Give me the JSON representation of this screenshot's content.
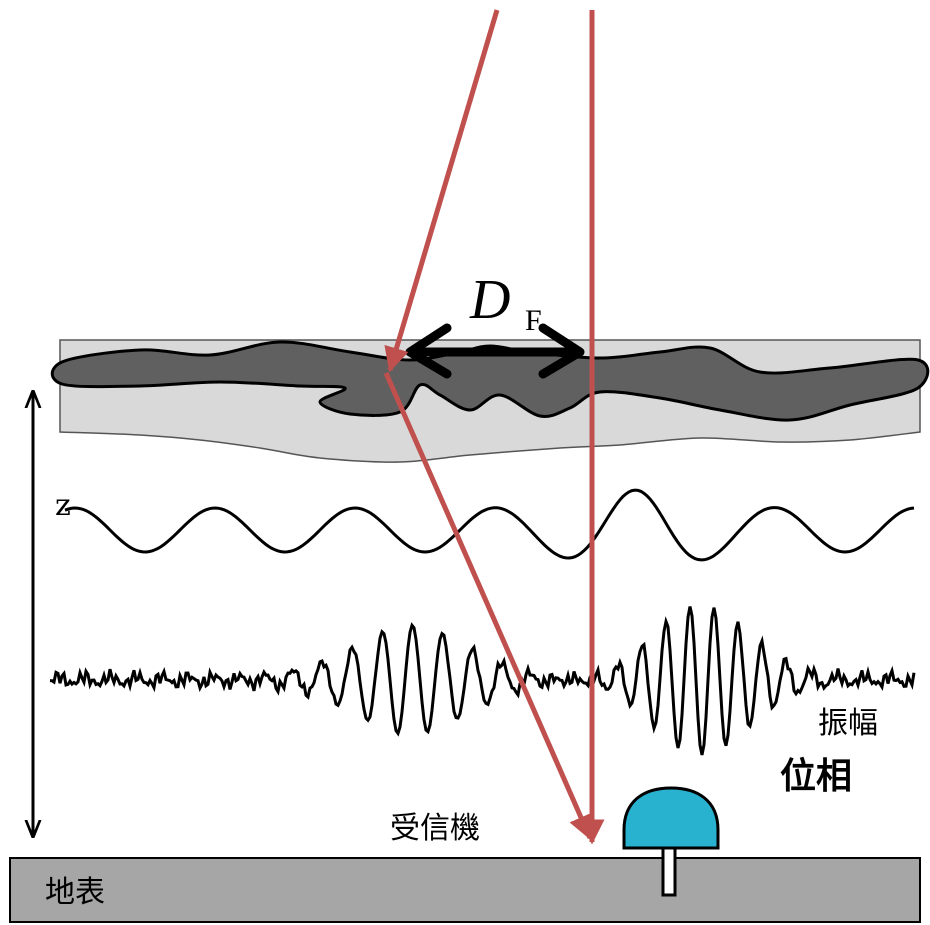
{
  "labels": {
    "fresnel_symbol": "D",
    "fresnel_subscript": "F",
    "height_axis": "z",
    "amplitude": "振幅",
    "phase": "位相",
    "receiver": "受信機",
    "ground": "地表"
  }
}
